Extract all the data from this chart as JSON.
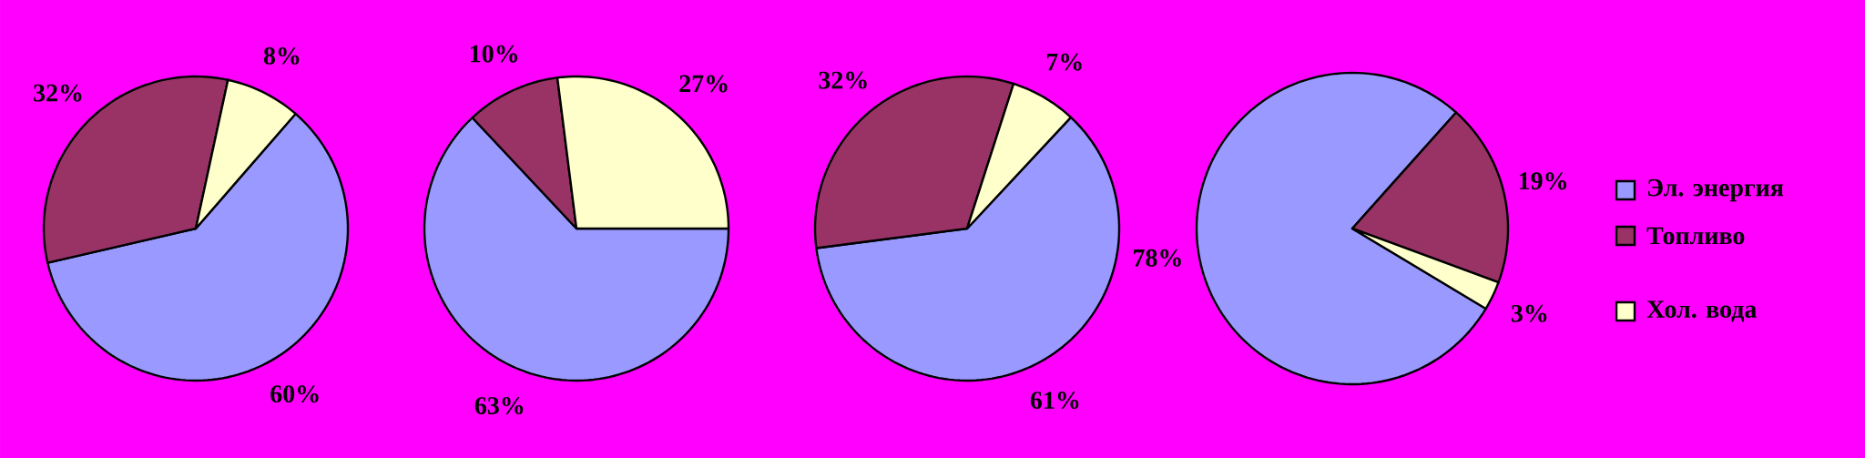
{
  "chart_data": [
    {
      "type": "pie",
      "categories": [
        null,
        null,
        null
      ],
      "values": [
        60,
        32,
        8
      ],
      "value_labels": [
        "60%",
        "32%",
        "8%"
      ],
      "colors": [
        "#9999ff",
        "#993366",
        "#ffffcc"
      ]
    },
    {
      "type": "pie",
      "categories": [
        null,
        null,
        null
      ],
      "values": [
        63,
        10,
        27
      ],
      "value_labels": [
        "63%",
        "10%",
        "27%"
      ],
      "colors": [
        "#9999ff",
        "#993366",
        "#ffffcc"
      ]
    },
    {
      "type": "pie",
      "categories": [
        null,
        null,
        null
      ],
      "values": [
        61,
        32,
        7
      ],
      "value_labels": [
        "61%",
        "32%",
        "7%"
      ],
      "colors": [
        "#9999ff",
        "#993366",
        "#ffffcc"
      ]
    },
    {
      "type": "pie",
      "categories": [
        "Эл. энергия",
        "Топливо",
        "Хол. вода"
      ],
      "values": [
        78,
        19,
        3
      ],
      "value_labels": [
        "78%",
        "19%",
        "3%"
      ],
      "colors": [
        "#9999ff",
        "#993366",
        "#ffffcc"
      ],
      "legend": "right"
    }
  ]
}
